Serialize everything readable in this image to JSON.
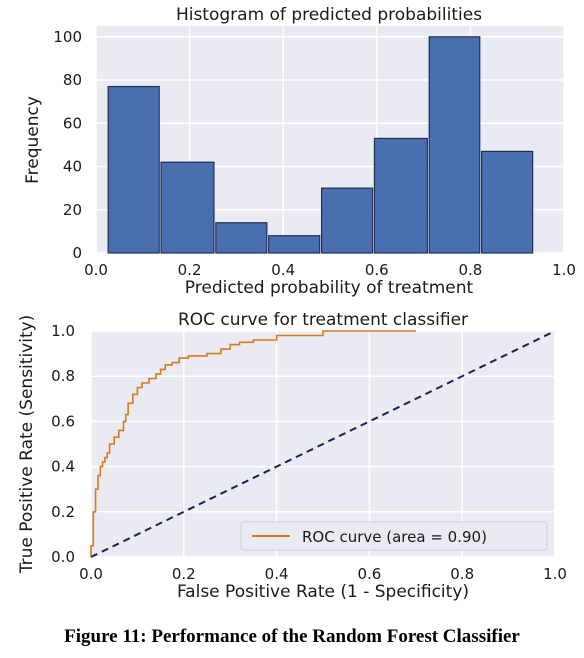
{
  "chart_data": [
    {
      "type": "bar",
      "title": "Histogram of predicted probabilities",
      "xlabel": "Predicted probability of treatment",
      "ylabel": "Frequency",
      "xlim": [
        0.0,
        1.0
      ],
      "ylim": [
        0,
        105
      ],
      "xticks": [
        "0.0",
        "0.2",
        "0.4",
        "0.6",
        "0.8",
        "1.0"
      ],
      "yticks": [
        "0",
        "20",
        "40",
        "60",
        "80",
        "100"
      ],
      "grid": true,
      "bar_color": "#4a6fae",
      "bins": [
        {
          "start": 0.026,
          "end": 0.135,
          "value": 77
        },
        {
          "start": 0.139,
          "end": 0.252,
          "value": 42
        },
        {
          "start": 0.256,
          "end": 0.365,
          "value": 14
        },
        {
          "start": 0.369,
          "end": 0.478,
          "value": 8
        },
        {
          "start": 0.482,
          "end": 0.591,
          "value": 30
        },
        {
          "start": 0.595,
          "end": 0.708,
          "value": 53
        },
        {
          "start": 0.712,
          "end": 0.82,
          "value": 100
        },
        {
          "start": 0.824,
          "end": 0.933,
          "value": 47
        }
      ]
    },
    {
      "type": "line",
      "title": "ROC curve for treatment classifier",
      "xlabel": "False Positive Rate (1 - Specificity)",
      "ylabel": "True Positive Rate (Sensitivity)",
      "xlim": [
        0.0,
        1.0
      ],
      "ylim": [
        0.0,
        1.0
      ],
      "xticks": [
        "0.0",
        "0.2",
        "0.4",
        "0.6",
        "0.8",
        "1.0"
      ],
      "yticks": [
        "0.0",
        "0.2",
        "0.4",
        "0.6",
        "0.8",
        "1.0"
      ],
      "grid": true,
      "legend_position": "bottom-right",
      "series": [
        {
          "name": "ROC curve (area = 0.90)",
          "color": "#d67a1c",
          "style": "step",
          "x": [
            0.0,
            0.0,
            0.005,
            0.005,
            0.01,
            0.01,
            0.015,
            0.015,
            0.02,
            0.02,
            0.025,
            0.025,
            0.03,
            0.03,
            0.035,
            0.035,
            0.04,
            0.04,
            0.05,
            0.05,
            0.06,
            0.06,
            0.07,
            0.07,
            0.075,
            0.075,
            0.08,
            0.08,
            0.09,
            0.09,
            0.1,
            0.1,
            0.11,
            0.11,
            0.125,
            0.125,
            0.14,
            0.14,
            0.15,
            0.15,
            0.16,
            0.16,
            0.175,
            0.175,
            0.19,
            0.19,
            0.21,
            0.21,
            0.25,
            0.25,
            0.28,
            0.28,
            0.3,
            0.3,
            0.32,
            0.32,
            0.35,
            0.35,
            0.4,
            0.4,
            0.5,
            0.5,
            0.7
          ],
          "y": [
            0.0,
            0.05,
            0.05,
            0.2,
            0.2,
            0.3,
            0.3,
            0.36,
            0.36,
            0.4,
            0.4,
            0.42,
            0.42,
            0.44,
            0.44,
            0.46,
            0.46,
            0.5,
            0.5,
            0.53,
            0.53,
            0.56,
            0.56,
            0.6,
            0.6,
            0.63,
            0.63,
            0.68,
            0.68,
            0.72,
            0.72,
            0.75,
            0.75,
            0.77,
            0.77,
            0.79,
            0.79,
            0.81,
            0.81,
            0.83,
            0.83,
            0.85,
            0.85,
            0.86,
            0.86,
            0.88,
            0.88,
            0.89,
            0.89,
            0.9,
            0.9,
            0.92,
            0.92,
            0.94,
            0.94,
            0.95,
            0.95,
            0.96,
            0.96,
            0.98,
            0.98,
            1.0,
            1.0
          ]
        },
        {
          "name": "",
          "color": "#1a2450",
          "style": "dashed",
          "x": [
            0.0,
            1.0
          ],
          "y": [
            0.0,
            1.0
          ]
        }
      ],
      "legend": [
        "ROC curve (area = 0.90)"
      ]
    }
  ],
  "caption": "Figure 11: Performance of the Random Forest Classifier"
}
